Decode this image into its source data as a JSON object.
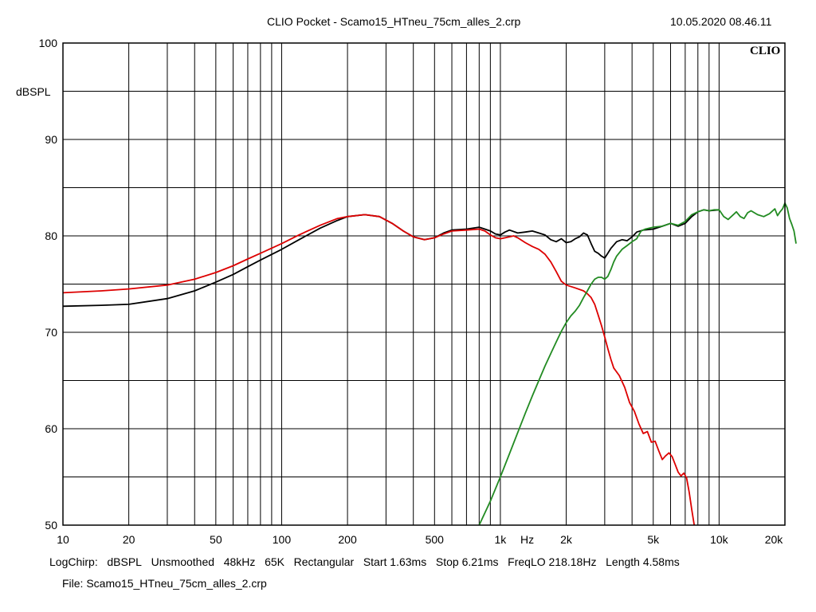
{
  "header": {
    "title": "CLIO Pocket - Scamo15_HTneu_75cm_alles_2.crp",
    "datetime": "10.05.2020 08.46.11",
    "logo": "CLIO"
  },
  "footer": {
    "settings": [
      "LogChirp:",
      "dBSPL",
      "Unsmoothed",
      "48kHz",
      "65K",
      "Rectangular",
      "Start 1.63ms",
      "Stop 6.21ms",
      "FreqLO 218.18Hz",
      "Length 4.58ms"
    ],
    "file": "File: Scamo15_HTneu_75cm_alles_2.crp"
  },
  "chart_data": {
    "type": "line",
    "x_scale": "log",
    "xlim": [
      10,
      20000
    ],
    "ylim": [
      50,
      100
    ],
    "xunit": "Hz",
    "yunit": "dBSPL",
    "grid": true,
    "x_ticks": [
      {
        "v": 10,
        "label": "10"
      },
      {
        "v": 20,
        "label": "20"
      },
      {
        "v": 50,
        "label": "50"
      },
      {
        "v": 100,
        "label": "100"
      },
      {
        "v": 200,
        "label": "200"
      },
      {
        "v": 500,
        "label": "500"
      },
      {
        "v": 1000,
        "label": "1k"
      },
      {
        "v": 2000,
        "label": "2k"
      },
      {
        "v": 5000,
        "label": "5k"
      },
      {
        "v": 10000,
        "label": "10k"
      },
      {
        "v": 20000,
        "label": "20k"
      }
    ],
    "y_ticks": [
      {
        "v": 100,
        "label": "100"
      },
      {
        "v": 90,
        "label": "90"
      },
      {
        "v": 80,
        "label": "80"
      },
      {
        "v": 70,
        "label": "70"
      },
      {
        "v": 60,
        "label": "60"
      },
      {
        "v": 50,
        "label": "50"
      }
    ],
    "series": [
      {
        "color": "#000000",
        "points": [
          [
            10,
            72.7
          ],
          [
            15,
            72.8
          ],
          [
            20,
            72.9
          ],
          [
            30,
            73.5
          ],
          [
            40,
            74.3
          ],
          [
            50,
            75.2
          ],
          [
            60,
            76.0
          ],
          [
            70,
            76.8
          ],
          [
            80,
            77.5
          ],
          [
            100,
            78.6
          ],
          [
            120,
            79.6
          ],
          [
            150,
            80.8
          ],
          [
            180,
            81.6
          ],
          [
            200,
            82.0
          ],
          [
            240,
            82.2
          ],
          [
            280,
            82.0
          ],
          [
            320,
            81.3
          ],
          [
            360,
            80.5
          ],
          [
            400,
            79.9
          ],
          [
            450,
            79.6
          ],
          [
            500,
            79.8
          ],
          [
            550,
            80.3
          ],
          [
            600,
            80.6
          ],
          [
            700,
            80.7
          ],
          [
            800,
            80.9
          ],
          [
            850,
            80.7
          ],
          [
            900,
            80.5
          ],
          [
            950,
            80.2
          ],
          [
            1000,
            80.1
          ],
          [
            1050,
            80.4
          ],
          [
            1100,
            80.6
          ],
          [
            1200,
            80.3
          ],
          [
            1300,
            80.4
          ],
          [
            1400,
            80.5
          ],
          [
            1500,
            80.3
          ],
          [
            1600,
            80.1
          ],
          [
            1700,
            79.6
          ],
          [
            1800,
            79.4
          ],
          [
            1900,
            79.7
          ],
          [
            2000,
            79.3
          ],
          [
            2100,
            79.4
          ],
          [
            2200,
            79.7
          ],
          [
            2300,
            79.9
          ],
          [
            2400,
            80.3
          ],
          [
            2500,
            80.1
          ],
          [
            2600,
            79.2
          ],
          [
            2700,
            78.4
          ],
          [
            2800,
            78.2
          ],
          [
            2900,
            77.9
          ],
          [
            3000,
            77.7
          ],
          [
            3100,
            78.2
          ],
          [
            3200,
            78.7
          ],
          [
            3400,
            79.4
          ],
          [
            3600,
            79.6
          ],
          [
            3800,
            79.5
          ],
          [
            4000,
            79.9
          ],
          [
            4200,
            80.4
          ],
          [
            4500,
            80.6
          ],
          [
            5000,
            80.7
          ],
          [
            5500,
            81.0
          ],
          [
            6000,
            81.3
          ],
          [
            6500,
            81.0
          ],
          [
            7000,
            81.3
          ],
          [
            7500,
            82.0
          ],
          [
            8000,
            82.5
          ],
          [
            8500,
            82.7
          ],
          [
            9000,
            82.6
          ],
          [
            10000,
            82.7
          ]
        ]
      },
      {
        "color": "#dd0000",
        "points": [
          [
            10,
            74.1
          ],
          [
            15,
            74.3
          ],
          [
            20,
            74.5
          ],
          [
            30,
            74.9
          ],
          [
            40,
            75.5
          ],
          [
            50,
            76.2
          ],
          [
            60,
            76.9
          ],
          [
            70,
            77.6
          ],
          [
            80,
            78.2
          ],
          [
            100,
            79.2
          ],
          [
            120,
            80.1
          ],
          [
            150,
            81.1
          ],
          [
            180,
            81.8
          ],
          [
            200,
            82.0
          ],
          [
            240,
            82.2
          ],
          [
            280,
            82.0
          ],
          [
            320,
            81.3
          ],
          [
            360,
            80.5
          ],
          [
            400,
            79.9
          ],
          [
            450,
            79.6
          ],
          [
            500,
            79.8
          ],
          [
            550,
            80.2
          ],
          [
            600,
            80.5
          ],
          [
            700,
            80.6
          ],
          [
            800,
            80.7
          ],
          [
            850,
            80.5
          ],
          [
            900,
            80.1
          ],
          [
            950,
            79.8
          ],
          [
            1000,
            79.7
          ],
          [
            1100,
            79.9
          ],
          [
            1150,
            80.0
          ],
          [
            1200,
            79.8
          ],
          [
            1300,
            79.3
          ],
          [
            1400,
            78.9
          ],
          [
            1500,
            78.6
          ],
          [
            1600,
            78.1
          ],
          [
            1700,
            77.3
          ],
          [
            1800,
            76.3
          ],
          [
            1900,
            75.3
          ],
          [
            2000,
            74.9
          ],
          [
            2200,
            74.6
          ],
          [
            2400,
            74.3
          ],
          [
            2500,
            74.0
          ],
          [
            2600,
            73.6
          ],
          [
            2700,
            72.9
          ],
          [
            2800,
            71.8
          ],
          [
            2900,
            70.7
          ],
          [
            3000,
            69.5
          ],
          [
            3100,
            68.3
          ],
          [
            3200,
            67.2
          ],
          [
            3300,
            66.3
          ],
          [
            3500,
            65.5
          ],
          [
            3700,
            64.3
          ],
          [
            3900,
            62.7
          ],
          [
            4100,
            61.8
          ],
          [
            4300,
            60.5
          ],
          [
            4500,
            59.5
          ],
          [
            4700,
            59.7
          ],
          [
            4900,
            58.6
          ],
          [
            5100,
            58.7
          ],
          [
            5300,
            57.7
          ],
          [
            5500,
            56.8
          ],
          [
            5700,
            57.2
          ],
          [
            5900,
            57.5
          ],
          [
            6100,
            57.1
          ],
          [
            6300,
            56.3
          ],
          [
            6500,
            55.5
          ],
          [
            6700,
            55.1
          ],
          [
            6900,
            55.4
          ],
          [
            7100,
            54.9
          ],
          [
            7300,
            53.4
          ],
          [
            7500,
            51.6
          ],
          [
            7700,
            50.0
          ]
        ]
      },
      {
        "color": "#228b22",
        "points": [
          [
            800,
            50.0
          ],
          [
            900,
            52.5
          ],
          [
            1000,
            55.0
          ],
          [
            1100,
            57.4
          ],
          [
            1200,
            59.6
          ],
          [
            1300,
            61.6
          ],
          [
            1400,
            63.4
          ],
          [
            1500,
            65.0
          ],
          [
            1600,
            66.5
          ],
          [
            1700,
            67.8
          ],
          [
            1800,
            69.0
          ],
          [
            1900,
            70.1
          ],
          [
            2000,
            71.0
          ],
          [
            2100,
            71.7
          ],
          [
            2200,
            72.2
          ],
          [
            2300,
            72.8
          ],
          [
            2400,
            73.6
          ],
          [
            2500,
            74.3
          ],
          [
            2600,
            75.0
          ],
          [
            2700,
            75.5
          ],
          [
            2800,
            75.7
          ],
          [
            2900,
            75.7
          ],
          [
            3000,
            75.5
          ],
          [
            3100,
            75.8
          ],
          [
            3200,
            76.5
          ],
          [
            3300,
            77.3
          ],
          [
            3400,
            77.9
          ],
          [
            3600,
            78.6
          ],
          [
            3800,
            79.0
          ],
          [
            4000,
            79.4
          ],
          [
            4200,
            79.7
          ],
          [
            4400,
            80.5
          ],
          [
            4600,
            80.7
          ],
          [
            5000,
            80.9
          ],
          [
            5500,
            81.0
          ],
          [
            6000,
            81.3
          ],
          [
            6500,
            81.1
          ],
          [
            7000,
            81.5
          ],
          [
            7500,
            82.2
          ],
          [
            8000,
            82.5
          ],
          [
            8500,
            82.7
          ],
          [
            9000,
            82.6
          ],
          [
            9500,
            82.7
          ],
          [
            10000,
            82.7
          ],
          [
            10500,
            82.0
          ],
          [
            11000,
            81.7
          ],
          [
            11500,
            82.1
          ],
          [
            12000,
            82.5
          ],
          [
            12500,
            82.0
          ],
          [
            13000,
            81.8
          ],
          [
            13500,
            82.4
          ],
          [
            14000,
            82.6
          ],
          [
            15000,
            82.2
          ],
          [
            16000,
            82.0
          ],
          [
            17000,
            82.3
          ],
          [
            18000,
            82.8
          ],
          [
            18500,
            82.1
          ],
          [
            19000,
            82.5
          ],
          [
            19500,
            82.8
          ],
          [
            20000,
            83.4
          ],
          [
            20500,
            82.9
          ],
          [
            21000,
            81.8
          ],
          [
            21500,
            81.2
          ],
          [
            22000,
            80.5
          ],
          [
            22500,
            79.2
          ]
        ]
      }
    ]
  }
}
